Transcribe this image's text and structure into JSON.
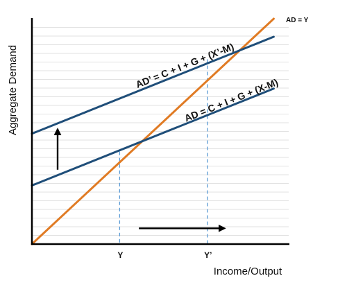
{
  "chart_data": {
    "type": "line",
    "title": "",
    "xlabel": "Income/Output",
    "ylabel": "Aggregate Demand",
    "xlim": [
      0,
      12
    ],
    "ylim": [
      0,
      10
    ],
    "grid": true,
    "legend": "none",
    "colors": {
      "ad_lines": "#1f4e79",
      "ad_equals_y": "#e07b24",
      "guide": "#5b9bd5",
      "axis": "#000000",
      "grid": "#d9d9d9",
      "arrow": "#000000"
    },
    "series": [
      {
        "label": "AD = Y",
        "x": [
          0,
          11.3
        ],
        "y": [
          0,
          10
        ],
        "color": "#e07b24"
      },
      {
        "label": "AD = C + I + G + (X-M)",
        "x": [
          0,
          11.3
        ],
        "y": [
          2.6,
          6.9
        ],
        "color": "#1f4e79"
      },
      {
        "label": "AD’ = C + I + G + (X’-M)",
        "x": [
          0,
          11.3
        ],
        "y": [
          4.9,
          9.2
        ],
        "color": "#1f4e79"
      }
    ],
    "x_ticks": [
      {
        "label": "Y",
        "x": 4.1
      },
      {
        "label": "Y’",
        "x": 8.2
      }
    ],
    "guides": [
      {
        "x": 4.1,
        "y": 4.1
      },
      {
        "x": 8.2,
        "y": 8.2
      }
    ],
    "arrows": [
      {
        "direction": "up",
        "x": 1.2,
        "y_from": 3.3,
        "y_to": 5.1
      },
      {
        "direction": "right",
        "y": 0.7,
        "x_from": 5.0,
        "x_to": 9.0
      }
    ]
  }
}
